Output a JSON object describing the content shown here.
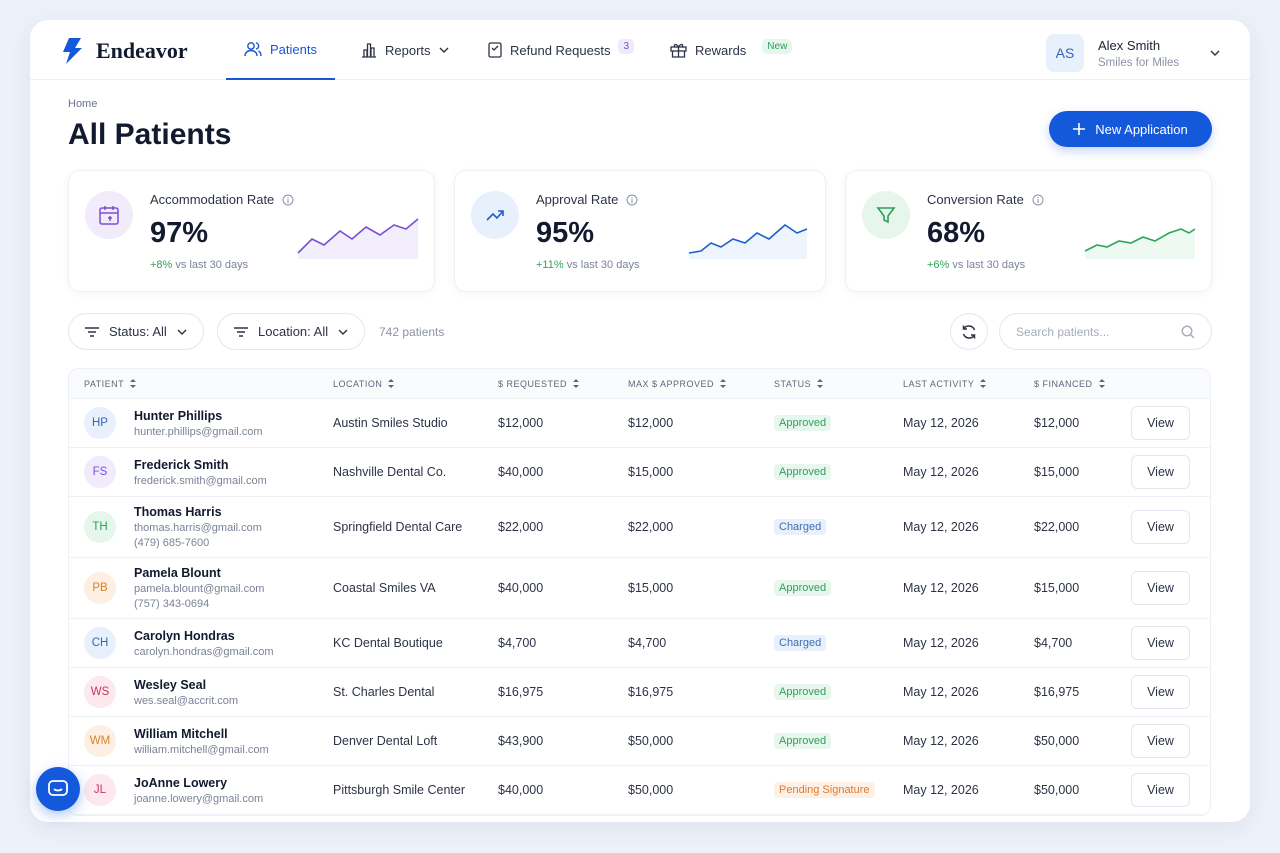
{
  "nav": {
    "brand": "Endeavor",
    "items": [
      {
        "label": "Patients"
      },
      {
        "label": "Reports"
      },
      {
        "label": "Refund Requests",
        "badge": "3"
      },
      {
        "label": "Rewards",
        "badge": "New"
      }
    ],
    "user": {
      "initials": "AS",
      "name": "Alex Smith",
      "org": "Smiles for Miles"
    }
  },
  "header": {
    "breadcrumb": "Home",
    "title": "All Patients",
    "action": "New Application"
  },
  "stats": [
    {
      "label": "Accommodation Rate",
      "value": "97%",
      "change": "+8%",
      "note": "vs last 30 days"
    },
    {
      "label": "Approval Rate",
      "value": "95%",
      "change": "+11%",
      "note": "vs last 30 days"
    },
    {
      "label": "Conversion Rate",
      "value": "68%",
      "change": "+6%",
      "note": "vs last 30 days"
    }
  ],
  "filters": {
    "status": "Status: All",
    "location": "Location: All",
    "count": "742 patients",
    "search": "Search patients..."
  },
  "table": {
    "columns": [
      "PATIENT",
      "LOCATION",
      "$ REQUESTED",
      "MAX $ APPROVED",
      "STATUS",
      "LAST ACTIVITY",
      "$ FINANCED"
    ],
    "rows": [
      {
        "initials": "HP",
        "name": "Hunter Phillips",
        "email": "hunter.phillips@gmail.com",
        "location": "Austin Smiles Studio",
        "requested": "$12,000",
        "approved": "$12,000",
        "status": "Approved",
        "activity": "May 12, 2026",
        "financed": "$12,000",
        "action": "View"
      },
      {
        "initials": "FS",
        "name": "Frederick Smith",
        "email": "frederick.smith@gmail.com",
        "location": "Nashville Dental Co.",
        "requested": "$40,000",
        "approved": "$15,000",
        "status": "Approved",
        "activity": "May 12, 2026",
        "financed": "$15,000",
        "action": "View"
      },
      {
        "initials": "TH",
        "name": "Thomas Harris",
        "email": "thomas.harris@gmail.com",
        "phone": "(479) 685-7600",
        "location": "Springfield Dental Care",
        "requested": "$22,000",
        "approved": "$22,000",
        "status": "Charged",
        "activity": "May 12, 2026",
        "financed": "$22,000",
        "action": "View"
      },
      {
        "initials": "PB",
        "name": "Pamela Blount",
        "email": "pamela.blount@gmail.com",
        "phone": "(757) 343-0694",
        "location": "Coastal Smiles VA",
        "requested": "$40,000",
        "approved": "$15,000",
        "status": "Approved",
        "activity": "May 12, 2026",
        "financed": "$15,000",
        "action": "View"
      },
      {
        "initials": "CH",
        "name": "Carolyn Hondras",
        "email": "carolyn.hondras@gmail.com",
        "location": "KC Dental Boutique",
        "requested": "$4,700",
        "approved": "$4,700",
        "status": "Charged",
        "activity": "May 12, 2026",
        "financed": "$4,700",
        "action": "View"
      },
      {
        "initials": "WS",
        "name": "Wesley Seal",
        "email": "wes.seal@accrit.com",
        "location": "St. Charles Dental",
        "requested": "$16,975",
        "approved": "$16,975",
        "status": "Approved",
        "activity": "May 12, 2026",
        "financed": "$16,975",
        "action": "View"
      },
      {
        "initials": "WM",
        "name": "William Mitchell",
        "email": "william.mitchell@gmail.com",
        "location": "Denver Dental Loft",
        "requested": "$43,900",
        "approved": "$50,000",
        "status": "Approved",
        "activity": "May 12, 2026",
        "financed": "$50,000",
        "action": "View"
      },
      {
        "initials": "JL",
        "name": "JoAnne Lowery",
        "email": "joanne.lowery@gmail.com",
        "location": "Pittsburgh Smile Center",
        "requested": "$40,000",
        "approved": "$50,000",
        "status": "Pending Signature",
        "activity": "May 12, 2026",
        "financed": "$50,000",
        "action": "View"
      }
    ]
  }
}
